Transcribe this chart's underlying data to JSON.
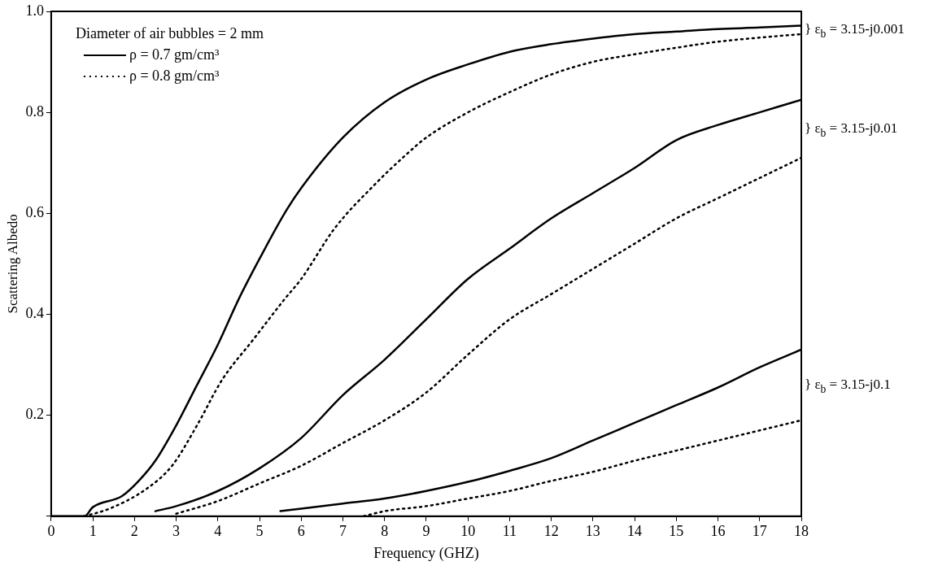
{
  "chart_data": {
    "type": "line",
    "xlabel": "Frequency (GHZ)",
    "ylabel": "Scattering Albedo",
    "legend_title": "Diameter of air bubbles = 2 mm",
    "legend": "top left",
    "grid": false,
    "marker": "none",
    "xlim": [
      0,
      18
    ],
    "xticks": [
      0,
      1,
      2,
      3,
      4,
      5,
      6,
      7,
      8,
      9,
      10,
      11,
      12,
      13,
      14,
      15,
      16,
      17,
      18
    ],
    "ylim": [
      0,
      1
    ],
    "yticks": [
      {
        "value": 0,
        "label": null
      },
      0.2,
      0.4,
      0.6,
      0.8,
      {
        "value": 1,
        "label": "1.0"
      }
    ],
    "series": [
      {
        "name": "ρ = 0.7 gm/cm³",
        "color": "#000000",
        "line_style": "solid",
        "x": [
          0,
          0.8,
          1,
          1.7,
          2.1,
          2.5,
          3,
          3.5,
          4,
          4.5,
          5,
          5.6,
          6,
          7,
          8,
          9,
          10,
          11,
          12,
          13,
          14,
          15,
          16,
          17,
          18
        ],
        "values": [
          0,
          0,
          0.018,
          0.04,
          0.07,
          0.11,
          0.18,
          0.26,
          0.34,
          0.43,
          0.51,
          0.6,
          0.65,
          0.75,
          0.82,
          0.865,
          0.895,
          0.92,
          0.935,
          0.946,
          0.955,
          0.96,
          0.965,
          0.968,
          0.972
        ]
      },
      {
        "name": "ρ = 0.8 gm/cm³",
        "color": "#000000",
        "line_style": "dotted",
        "x": [
          0.8,
          1.4,
          2.3,
          2.9,
          3.5,
          4.1,
          4.85,
          5.6,
          6,
          6.8,
          7.8,
          8.5,
          9,
          10,
          11,
          12,
          13,
          14,
          15,
          16,
          17,
          18
        ],
        "values": [
          0,
          0.015,
          0.055,
          0.1,
          0.18,
          0.27,
          0.35,
          0.43,
          0.47,
          0.57,
          0.66,
          0.715,
          0.75,
          0.8,
          0.84,
          0.875,
          0.9,
          0.915,
          0.928,
          0.94,
          0.948,
          0.955
        ]
      },
      {
        "color": "#000000",
        "line_style": "solid",
        "x": [
          2.5,
          3,
          4,
          5,
          6,
          7,
          8,
          9,
          10,
          11,
          12,
          13,
          14,
          15,
          16,
          17,
          18
        ],
        "values": [
          0.01,
          0.02,
          0.05,
          0.095,
          0.155,
          0.24,
          0.31,
          0.39,
          0.47,
          0.53,
          0.59,
          0.64,
          0.69,
          0.745,
          0.775,
          0.8,
          0.825
        ]
      },
      {
        "color": "#000000",
        "line_style": "dotted",
        "x": [
          3,
          4,
          5,
          6,
          7,
          8,
          9,
          10,
          11,
          12,
          13,
          14,
          15,
          16,
          17,
          18
        ],
        "values": [
          0.005,
          0.03,
          0.065,
          0.1,
          0.145,
          0.19,
          0.245,
          0.32,
          0.39,
          0.44,
          0.49,
          0.54,
          0.59,
          0.63,
          0.67,
          0.71
        ]
      },
      {
        "color": "#000000",
        "line_style": "solid",
        "x": [
          5.5,
          6,
          7,
          8,
          9,
          10,
          11,
          12,
          13,
          14,
          15,
          16,
          17,
          18
        ],
        "values": [
          0.01,
          0.015,
          0.025,
          0.035,
          0.05,
          0.068,
          0.09,
          0.115,
          0.15,
          0.185,
          0.22,
          0.255,
          0.295,
          0.33
        ]
      },
      {
        "color": "#000000",
        "line_style": "dotted",
        "x": [
          7.5,
          8,
          9,
          10,
          11,
          12,
          13,
          14,
          15,
          16,
          17,
          18
        ],
        "values": [
          0,
          0.01,
          0.02,
          0.035,
          0.05,
          0.07,
          0.088,
          0.11,
          0.13,
          0.15,
          0.17,
          0.19
        ]
      }
    ],
    "annotations": [
      "} ε$_{b}$ = 3.15-j0.001",
      "} ε$_{b}$ = 3.15-j0.01",
      "} ε$_{b}$ = 3.15-j0.1"
    ]
  }
}
